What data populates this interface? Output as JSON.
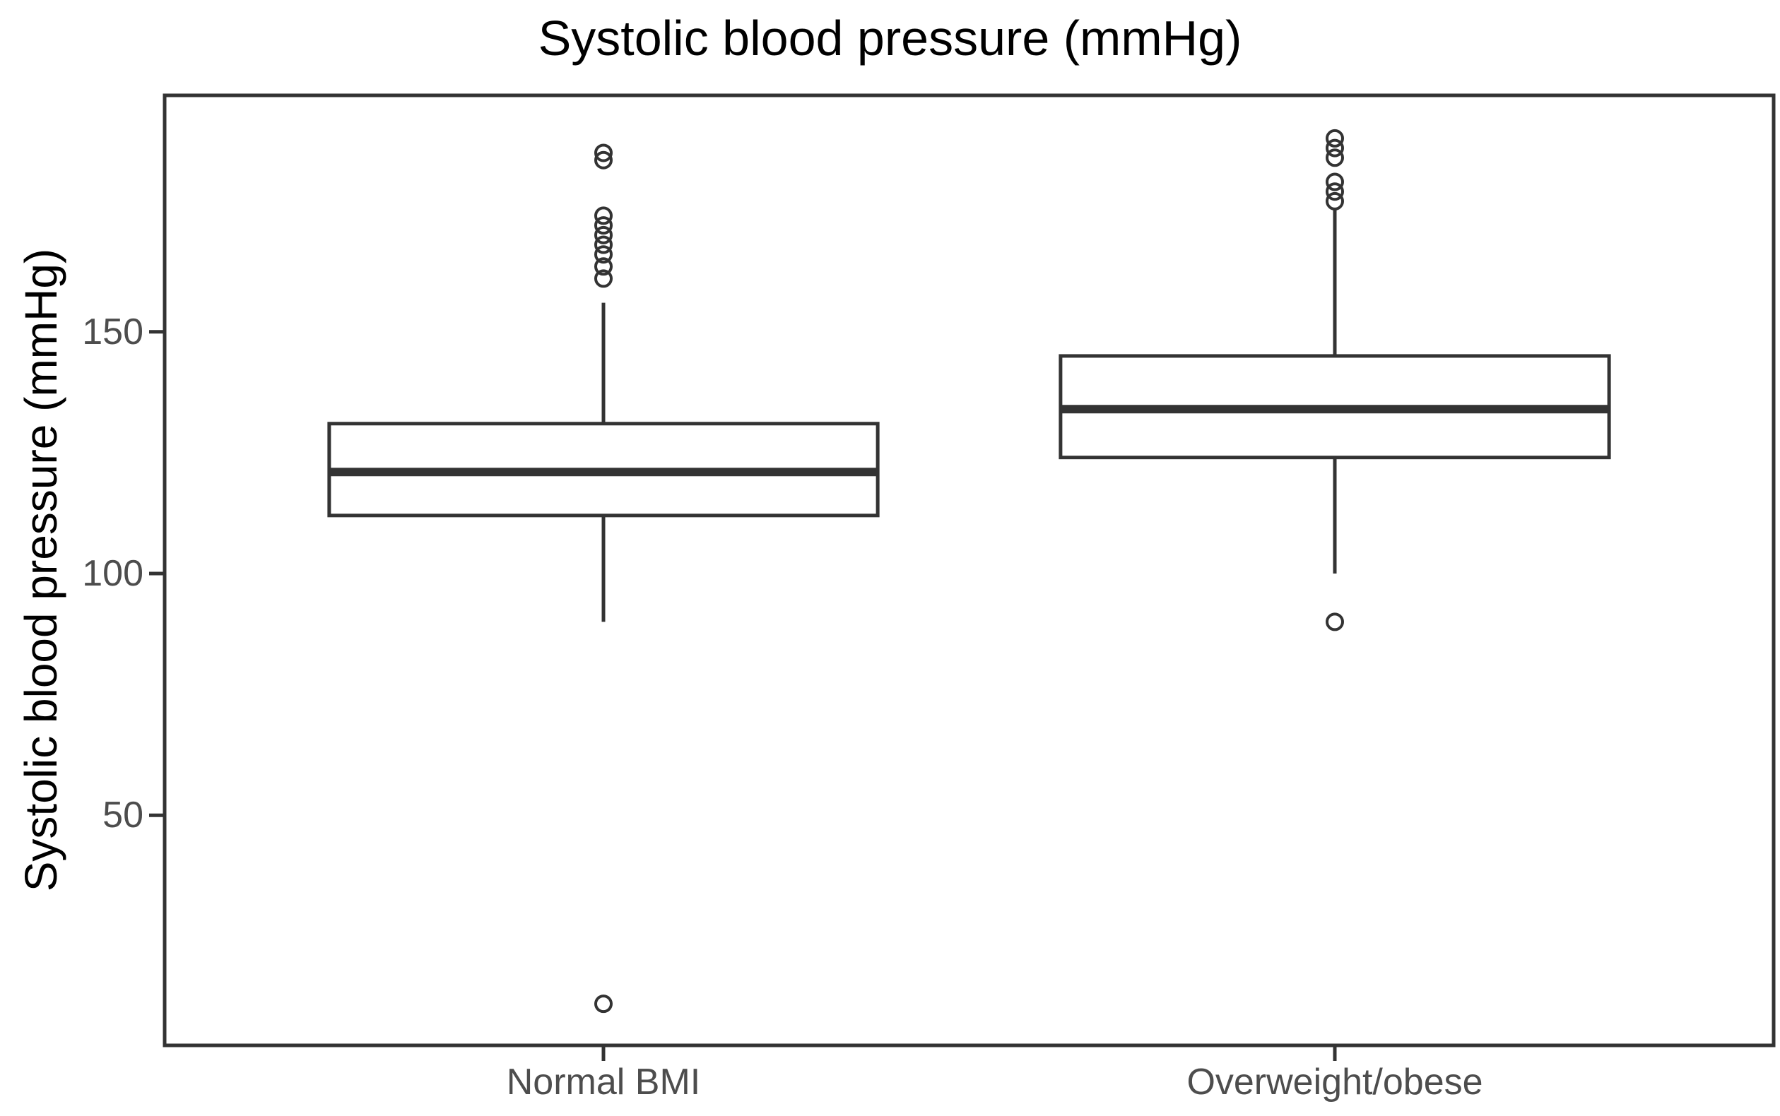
{
  "page": {
    "background": "#ffffff"
  },
  "chart_data": {
    "type": "boxplot",
    "title": "Systolic blood pressure (mmHg)",
    "ylabel": "Systolic blood pressure (mmHg)",
    "xlabel": "",
    "categories": [
      "Normal BMI",
      "Overweight/obese"
    ],
    "ylim": [
      2.4,
      198.9
    ],
    "yticks": [
      50,
      100,
      150
    ],
    "ytick_labels": [
      "50",
      "100",
      "150"
    ],
    "grid": false,
    "legend_position": "none",
    "series": [
      {
        "name": "Normal BMI",
        "q1": 112,
        "median": 121,
        "q3": 131,
        "whisker_low": 90,
        "whisker_high": 156,
        "outliers": [
          11,
          161,
          163.5,
          166,
          168,
          170,
          172,
          174,
          185.5,
          187
        ]
      },
      {
        "name": "Overweight/obese",
        "q1": 124,
        "median": 134,
        "q3": 145,
        "whisker_low": 100,
        "whisker_high": 175.5,
        "outliers": [
          90,
          177,
          179,
          181,
          186,
          188,
          190
        ]
      }
    ],
    "style": {
      "line_color": "#333333",
      "axis_text_color": "#4d4d4d",
      "title_color": "#000000",
      "box_fill": "#ffffff"
    }
  }
}
